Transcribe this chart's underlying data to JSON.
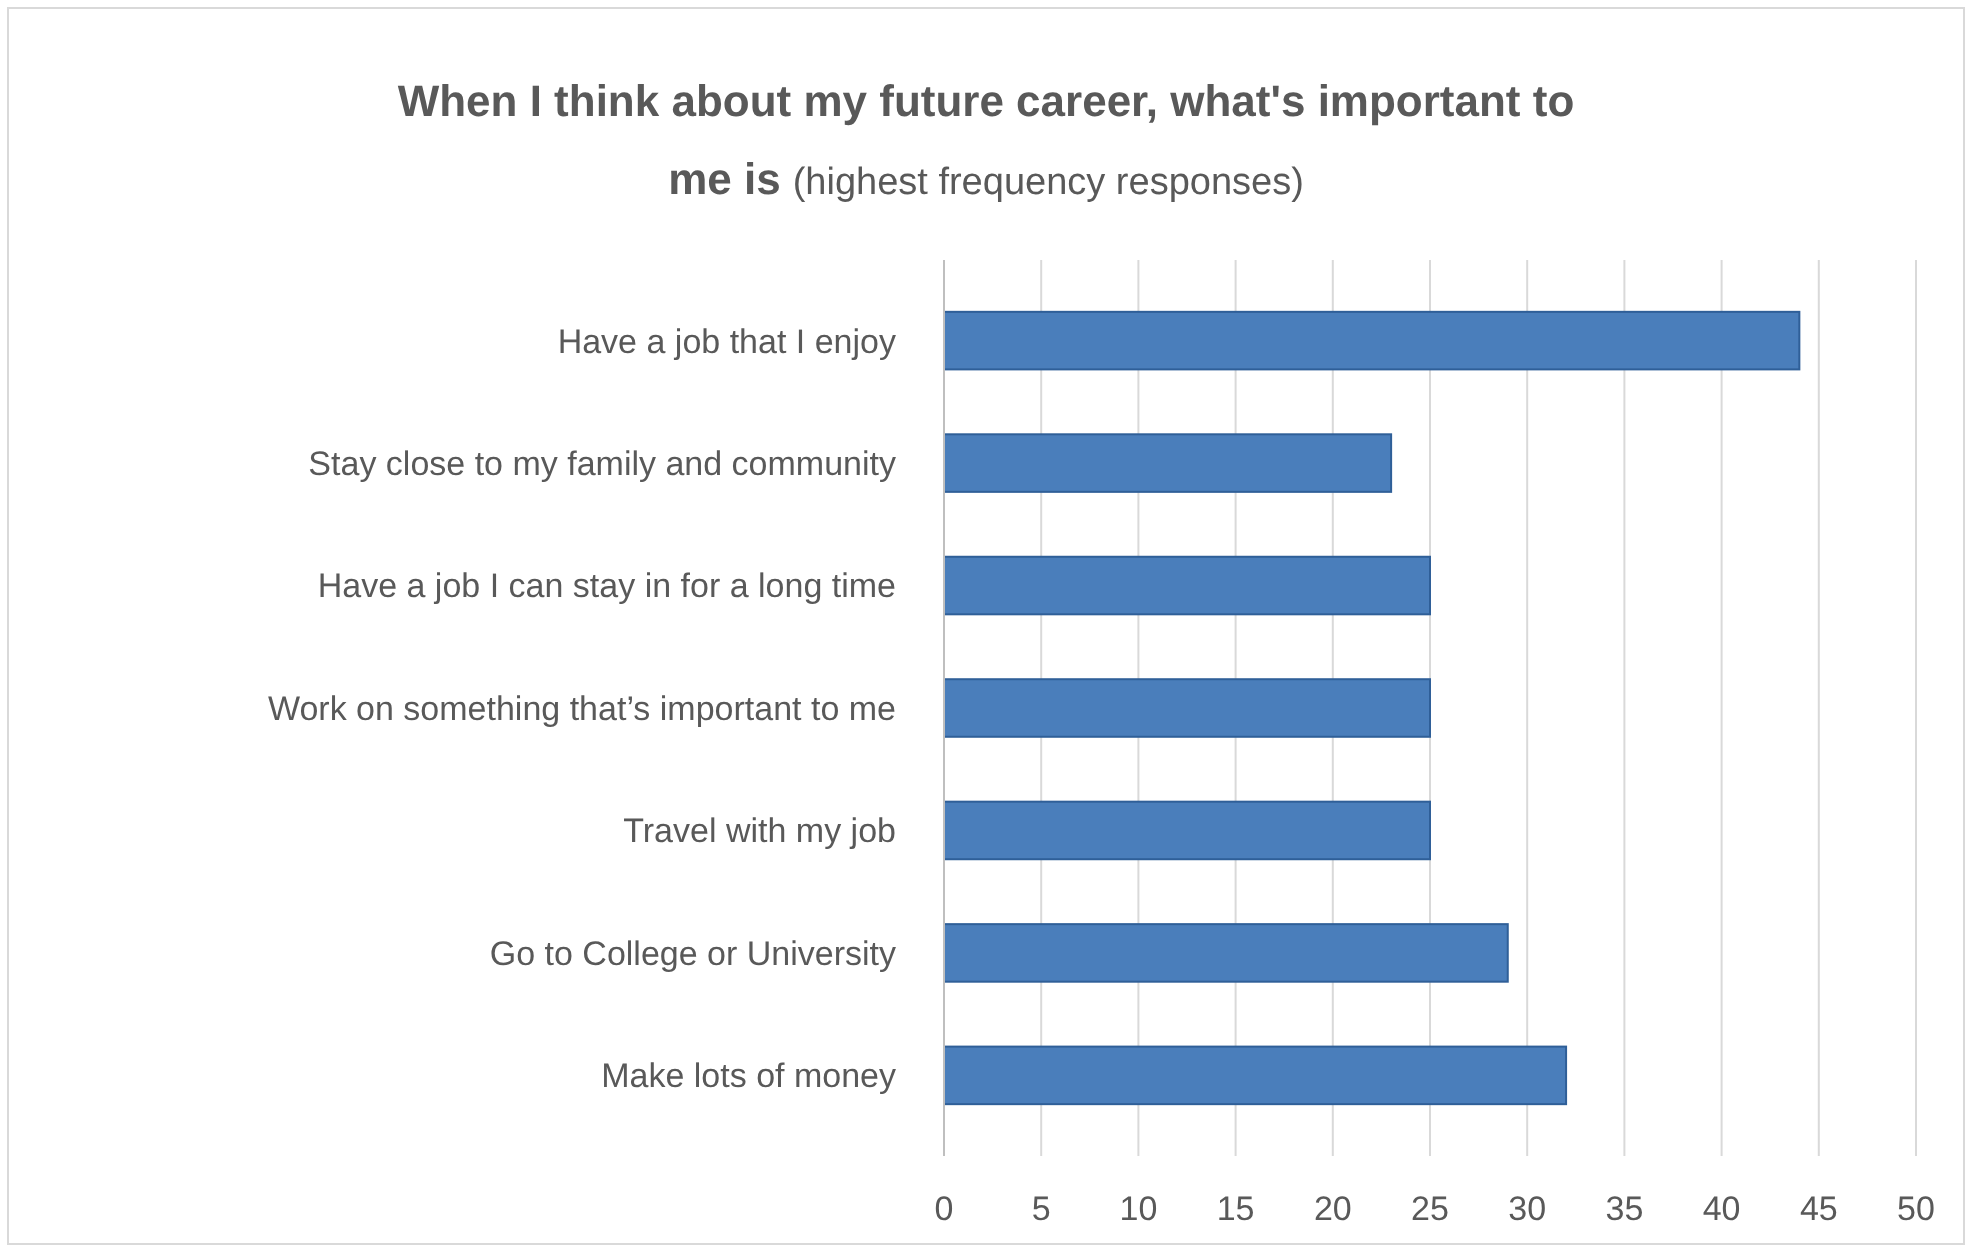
{
  "chart_data": {
    "type": "bar",
    "orientation": "horizontal",
    "title": "When I think about my future career, what's important to me is",
    "subtitle": "(highest frequency responses)",
    "categories": [
      "Have a job that I enjoy",
      "Stay close to my family and community",
      "Have a job I can stay in for a long time",
      "Work on something that’s important to me",
      "Travel with my job",
      "Go to College or University",
      "Make lots of money"
    ],
    "values": [
      44,
      23,
      25,
      25,
      25,
      29,
      32
    ],
    "color": "#4a7ebb",
    "xlim": [
      0,
      50
    ],
    "xticks": [
      0,
      5,
      10,
      15,
      20,
      25,
      30,
      35,
      40,
      45,
      50
    ],
    "grid": "x"
  }
}
